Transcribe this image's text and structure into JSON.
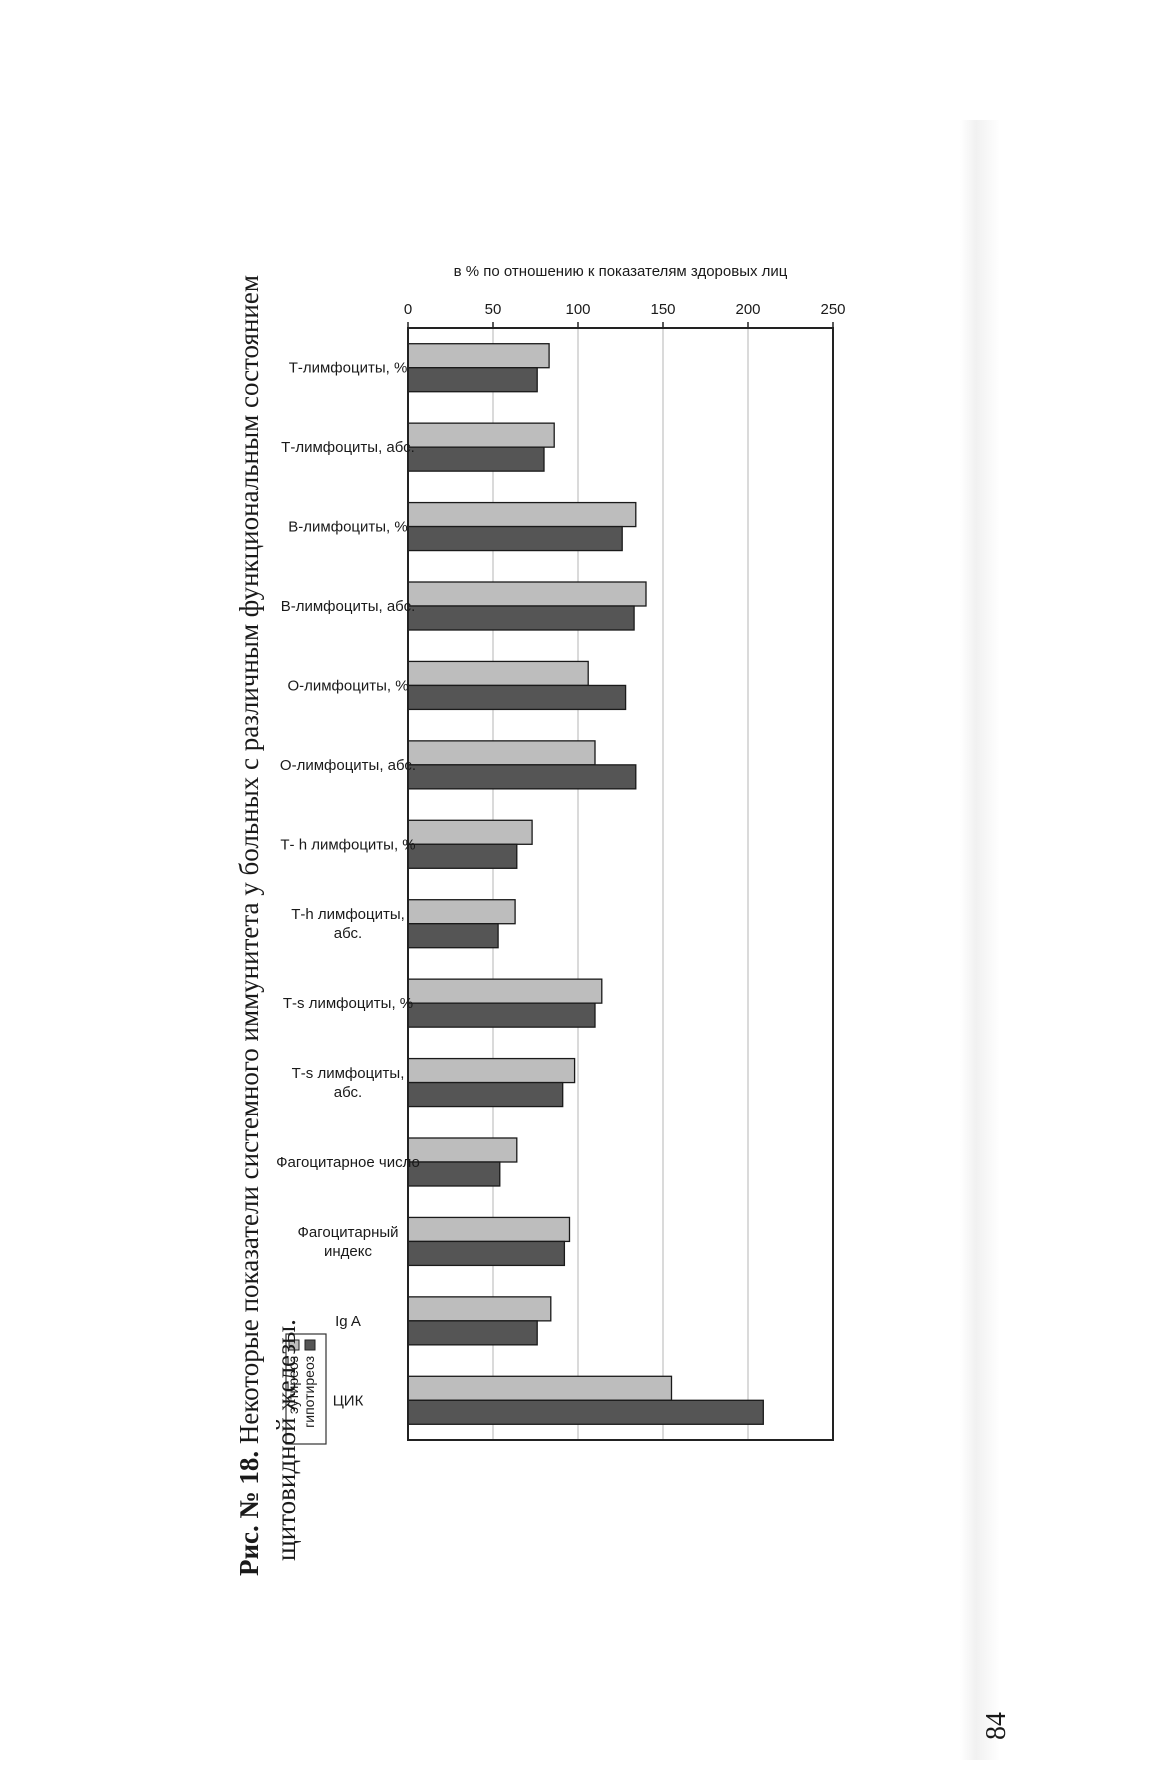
{
  "caption": {
    "number": "Рис. № 18.",
    "line1": "Некоторые показатели системного иммунитета у больных с различным функциональным состоянием",
    "line2": "щитовидной железы."
  },
  "page_number": "84",
  "colors": {
    "eutireoz": "#bdbdbd",
    "gipotireoz": "#555555"
  },
  "chart_data": {
    "type": "bar",
    "orientation": "horizontal",
    "ylabel": "в % по отношению к показателям здоровых лиц",
    "xlim": [
      0,
      250
    ],
    "ticks": [
      "0",
      "50",
      "100",
      "150",
      "200",
      "250"
    ],
    "tick_values": [
      0,
      50,
      100,
      150,
      200,
      250
    ],
    "grid": true,
    "legend_position": "bottom-right",
    "categories": [
      [
        "Т-лимфоциты, %"
      ],
      [
        "Т-лимфоциты, абс."
      ],
      [
        "В-лимфоциты, %"
      ],
      [
        "В-лимфоциты, абс."
      ],
      [
        "О-лимфоциты, %"
      ],
      [
        "О-лимфоциты, абс."
      ],
      [
        "Т- h лимфоциты, %"
      ],
      [
        "Т-h лимфоциты,",
        "абс."
      ],
      [
        "Т-s лимфоциты, %"
      ],
      [
        "Т-s лимфоциты,",
        "абс."
      ],
      [
        "Фагоцитарное число"
      ],
      [
        "Фагоцитарный",
        "индекс"
      ],
      [
        "Ig A"
      ],
      [
        "ЦИК"
      ]
    ],
    "series": [
      {
        "name": "эутиреоз",
        "values": [
          83,
          86,
          134,
          140,
          106,
          110,
          73,
          63,
          114,
          98,
          64,
          95,
          84,
          155
        ]
      },
      {
        "name": "гипотиреоз",
        "values": [
          76,
          80,
          126,
          133,
          128,
          134,
          64,
          53,
          110,
          91,
          54,
          92,
          76,
          209
        ]
      }
    ]
  }
}
